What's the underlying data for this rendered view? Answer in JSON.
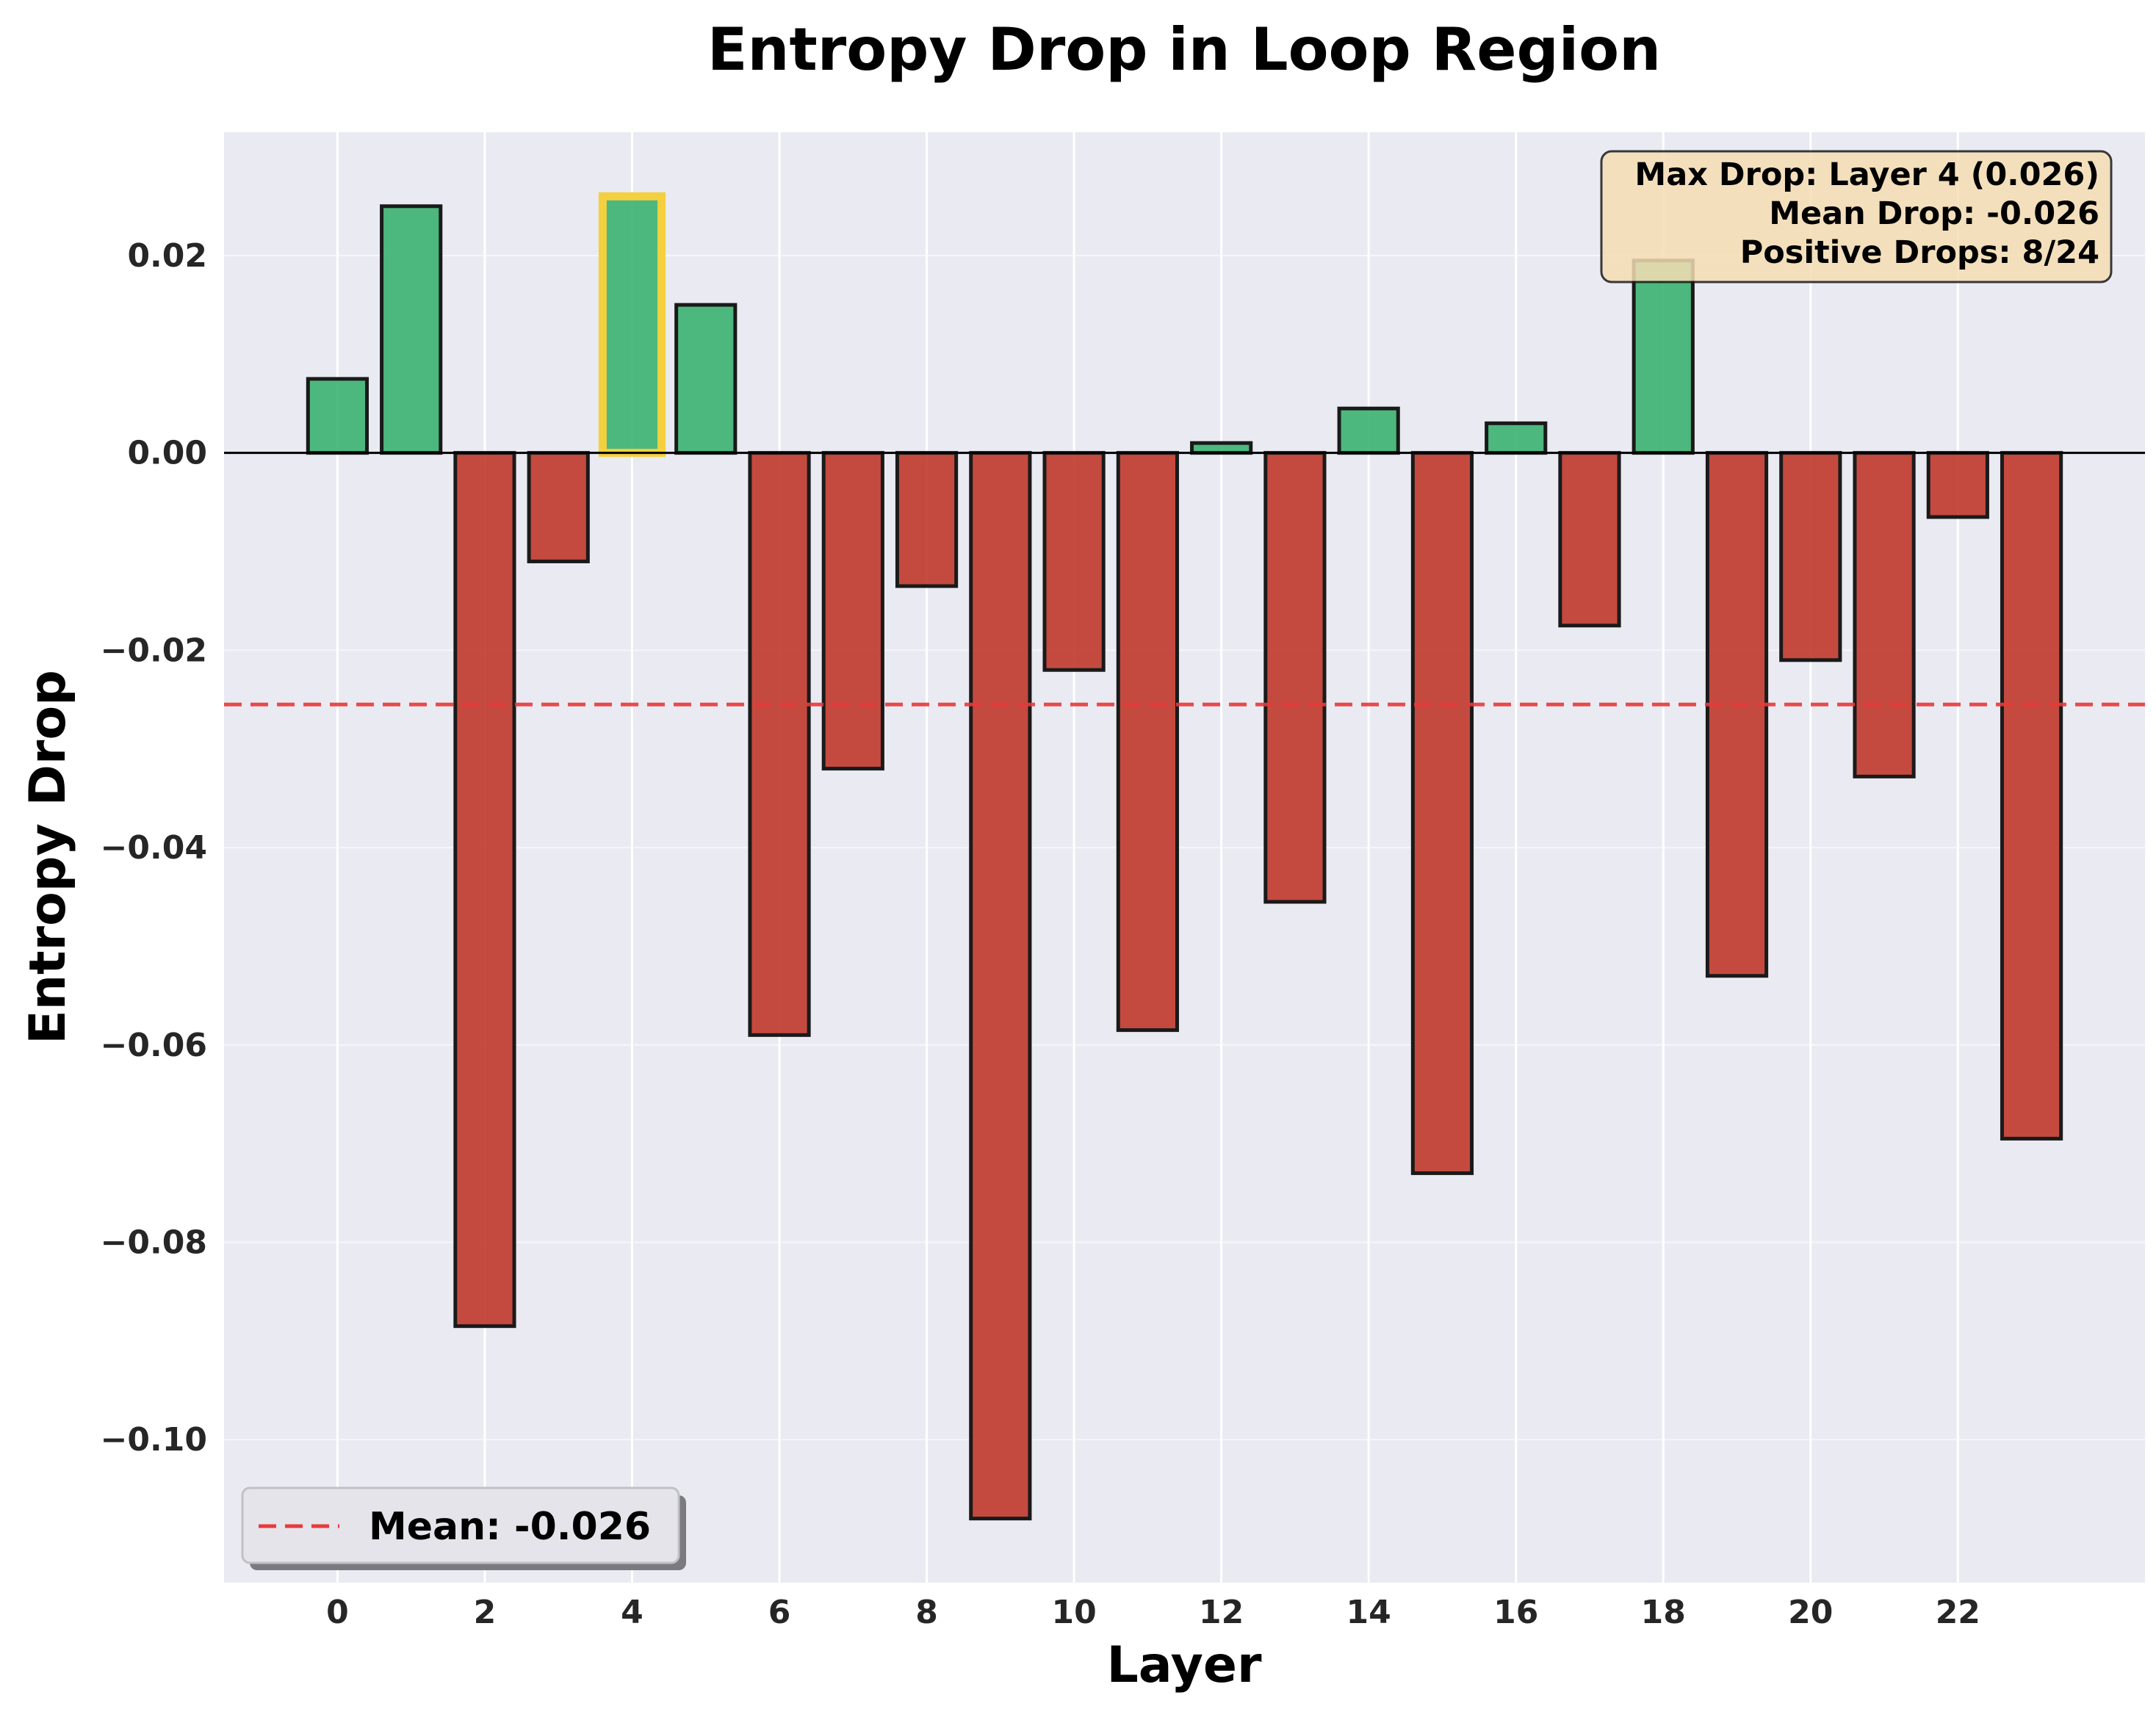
{
  "chart_data": {
    "type": "bar",
    "title": "Entropy Drop in Loop Region",
    "xlabel": "Layer",
    "ylabel": "Entropy Drop",
    "categories": [
      0,
      1,
      2,
      3,
      4,
      5,
      6,
      7,
      8,
      9,
      10,
      11,
      12,
      13,
      14,
      15,
      16,
      17,
      18,
      19,
      20,
      21,
      22,
      23
    ],
    "values": [
      0.0075,
      0.025,
      -0.0885,
      -0.011,
      0.026,
      0.015,
      -0.059,
      -0.032,
      -0.0135,
      -0.108,
      -0.022,
      -0.0585,
      0.001,
      -0.0455,
      0.0045,
      -0.073,
      0.003,
      -0.0175,
      0.0195,
      -0.053,
      -0.021,
      -0.0328,
      -0.0065,
      -0.0695
    ],
    "highlight_index": 4,
    "xticks": [
      0,
      2,
      4,
      6,
      8,
      10,
      12,
      14,
      16,
      18,
      20,
      22
    ],
    "xtick_labels": [
      "0",
      "2",
      "4",
      "6",
      "8",
      "10",
      "12",
      "14",
      "16",
      "18",
      "20",
      "22"
    ],
    "yticks": [
      0.02,
      0.0,
      -0.02,
      -0.04,
      -0.06,
      -0.08,
      -0.1
    ],
    "ytick_labels": [
      "0.02",
      "0.00",
      "−0.02",
      "−0.04",
      "−0.06",
      "−0.08",
      "−0.10"
    ],
    "xlim": [
      -1.54,
      24.54
    ],
    "ylim": [
      -0.1145,
      0.0325
    ],
    "mean_line": -0.0255,
    "legend": {
      "label": "Mean: -0.026",
      "placement": "lower-left"
    },
    "annotation": {
      "lines": [
        "Max Drop: Layer 4 (0.026)",
        "Mean Drop: -0.026",
        "Positive Drops: 8/24"
      ],
      "placement": "upper-right"
    },
    "grid": true
  },
  "colors": {
    "background": "#eaeaf2",
    "positive": "#3cb371",
    "negative": "#c0392b",
    "edge": "#1a1a1a",
    "highlight_edge": "#f4d03f",
    "mean_line": "#e8393a",
    "annotation_bg": "#f5deb3"
  }
}
